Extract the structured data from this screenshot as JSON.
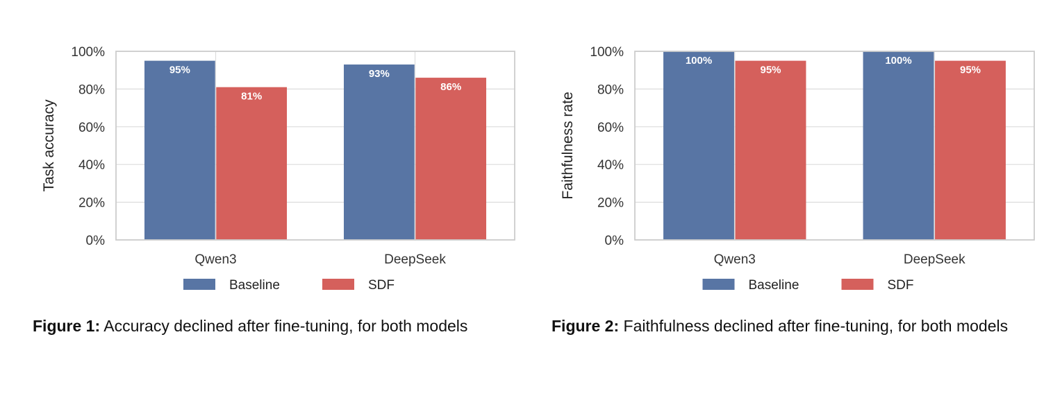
{
  "chart_data": [
    {
      "type": "bar",
      "categories": [
        "Qwen3",
        "DeepSeek"
      ],
      "series": [
        {
          "name": "Baseline",
          "values": [
            95,
            93
          ],
          "labels": [
            "95%",
            "93%"
          ],
          "color": "#5875a4"
        },
        {
          "name": "SDF",
          "values": [
            81,
            86
          ],
          "labels": [
            "81%",
            "86%"
          ],
          "color": "#d5605c"
        }
      ],
      "ylabel": "Task accuracy",
      "ylim": [
        0,
        100
      ],
      "yticks": [
        "0%",
        "20%",
        "40%",
        "60%",
        "80%",
        "100%"
      ],
      "grid": true,
      "legend": "bottom-center"
    },
    {
      "type": "bar",
      "categories": [
        "Qwen3",
        "DeepSeek"
      ],
      "series": [
        {
          "name": "Baseline",
          "values": [
            100,
            100
          ],
          "labels": [
            "100%",
            "100%"
          ],
          "color": "#5875a4"
        },
        {
          "name": "SDF",
          "values": [
            95,
            95
          ],
          "labels": [
            "95%",
            "95%"
          ],
          "color": "#d5605c"
        }
      ],
      "ylabel": "Faithfulness rate",
      "ylim": [
        0,
        100
      ],
      "yticks": [
        "0%",
        "20%",
        "40%",
        "60%",
        "80%",
        "100%"
      ],
      "grid": true,
      "legend": "bottom-center"
    }
  ],
  "captions": [
    {
      "label": "Figure 1:",
      "text": " Accuracy declined after fine-tuning, for both models"
    },
    {
      "label": "Figure 2:",
      "text": " Faithfulness declined after fine-tuning, for both models"
    }
  ]
}
